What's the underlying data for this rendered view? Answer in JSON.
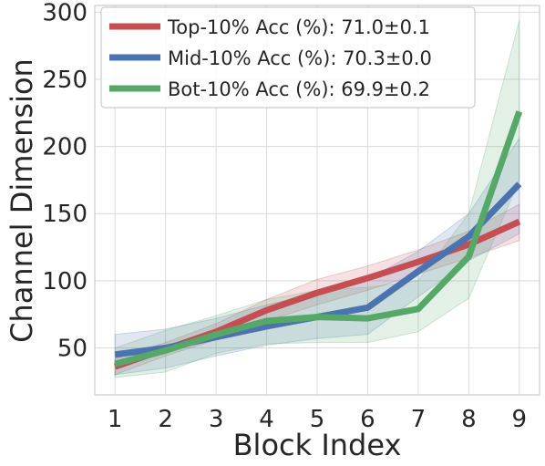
{
  "chart_data": {
    "type": "line",
    "title": "",
    "xlabel": "Block Index",
    "ylabel": "Channel Dimension",
    "x": [
      1,
      2,
      3,
      4,
      5,
      6,
      7,
      8,
      9
    ],
    "xlim": [
      0.6,
      9.4
    ],
    "ylim": [
      15,
      305
    ],
    "xticks": [
      1,
      2,
      3,
      4,
      5,
      6,
      7,
      8,
      9
    ],
    "yticks": [
      50,
      100,
      150,
      200,
      250,
      300
    ],
    "grid": true,
    "legend_position": "top-left",
    "series": [
      {
        "name": "Top-10% Acc (%): 71.0±0.1",
        "color": "#c44e52",
        "values": [
          36,
          49,
          62,
          78,
          91,
          102,
          114,
          127,
          144
        ],
        "lower": [
          30,
          44,
          56,
          70,
          82,
          93,
          105,
          117,
          130
        ],
        "upper": [
          42,
          54,
          68,
          86,
          101,
          111,
          123,
          137,
          157
        ]
      },
      {
        "name": "Mid-10% Acc (%): 70.3±0.0",
        "color": "#4c72b0",
        "values": [
          45,
          50,
          58,
          66,
          73,
          80,
          107,
          133,
          172
        ],
        "lower": [
          30,
          35,
          44,
          52,
          57,
          60,
          88,
          115,
          135
        ],
        "upper": [
          60,
          64,
          72,
          82,
          91,
          101,
          122,
          150,
          206
        ]
      },
      {
        "name": "Bot-10% Acc (%): 69.9±0.2",
        "color": "#55a868",
        "values": [
          38,
          48,
          60,
          70,
          73,
          72,
          79,
          118,
          226
        ],
        "lower": [
          28,
          32,
          46,
          53,
          54,
          54,
          62,
          87,
          175
        ],
        "upper": [
          50,
          63,
          74,
          86,
          93,
          95,
          100,
          150,
          294
        ]
      }
    ]
  }
}
